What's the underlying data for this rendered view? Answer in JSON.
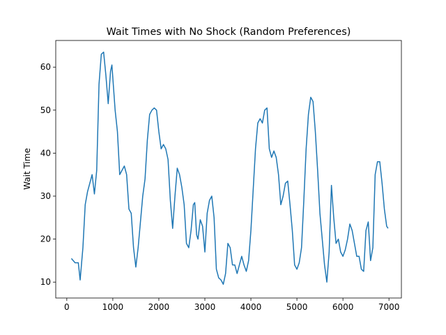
{
  "chart_data": {
    "type": "line",
    "title": "Wait Times with No Shock (Random Preferences)",
    "ylabel": "Wait Time",
    "x": [
      100,
      180,
      250,
      290,
      350,
      400,
      450,
      500,
      550,
      600,
      650,
      700,
      750,
      800,
      850,
      900,
      950,
      980,
      1050,
      1100,
      1150,
      1200,
      1250,
      1300,
      1350,
      1400,
      1450,
      1500,
      1550,
      1650,
      1700,
      1750,
      1800,
      1850,
      1900,
      1950,
      2000,
      2050,
      2100,
      2150,
      2200,
      2250,
      2300,
      2350,
      2400,
      2450,
      2500,
      2550,
      2600,
      2650,
      2700,
      2750,
      2780,
      2820,
      2850,
      2900,
      2950,
      3000,
      3050,
      3100,
      3150,
      3200,
      3250,
      3300,
      3350,
      3400,
      3450,
      3500,
      3550,
      3600,
      3650,
      3700,
      3750,
      3800,
      3850,
      3900,
      3950,
      4000,
      4100,
      4150,
      4200,
      4250,
      4300,
      4350,
      4400,
      4450,
      4500,
      4550,
      4600,
      4650,
      4700,
      4750,
      4800,
      4850,
      4900,
      4950,
      5000,
      5050,
      5100,
      5150,
      5200,
      5250,
      5300,
      5350,
      5400,
      5450,
      5500,
      5550,
      5600,
      5650,
      5700,
      5750,
      5800,
      5850,
      5900,
      5950,
      6000,
      6050,
      6100,
      6150,
      6200,
      6250,
      6300,
      6350,
      6400,
      6450,
      6500,
      6550,
      6600,
      6650,
      6700,
      6750,
      6800,
      6850,
      6900,
      6950,
      6980
    ],
    "y": [
      15.5,
      14.5,
      14.5,
      10.5,
      18,
      28,
      31,
      33,
      35,
      30.5,
      36,
      56,
      63,
      63.5,
      58,
      51.5,
      59,
      60.5,
      50,
      45,
      35,
      36,
      37,
      35,
      27,
      26,
      18,
      13.5,
      18,
      30,
      34,
      43,
      49,
      50,
      50.5,
      50,
      45,
      41,
      42,
      41,
      38.5,
      29,
      22.5,
      30,
      36.5,
      35,
      32,
      28,
      19,
      18,
      22,
      28,
      28.5,
      21,
      20,
      24.5,
      23,
      17,
      26,
      29,
      30,
      25,
      13,
      11,
      10.5,
      9.5,
      12,
      19,
      18,
      14,
      14,
      12,
      14,
      16,
      14,
      12.5,
      15,
      22,
      41,
      47,
      48,
      47,
      50,
      50.5,
      41,
      39,
      40.5,
      39,
      35,
      28,
      30,
      33,
      33.5,
      28,
      22,
      14,
      13,
      14.5,
      18,
      29,
      41,
      49,
      53,
      52,
      45,
      36,
      26,
      20,
      14,
      10,
      17,
      32.5,
      25,
      19,
      20,
      17,
      16,
      17.5,
      20,
      23.5,
      22,
      19,
      16,
      16,
      13,
      12.5,
      22,
      24,
      15,
      18,
      35,
      38,
      38,
      33,
      27,
      23,
      22.5
    ],
    "color": "#1f77b4",
    "xlim": [
      -240,
      7270
    ],
    "ylim": [
      6.3,
      66.2
    ],
    "xticks": [
      0,
      1000,
      2000,
      3000,
      4000,
      5000,
      6000,
      7000
    ],
    "yticks": [
      10,
      20,
      30,
      40,
      50,
      60
    ]
  }
}
